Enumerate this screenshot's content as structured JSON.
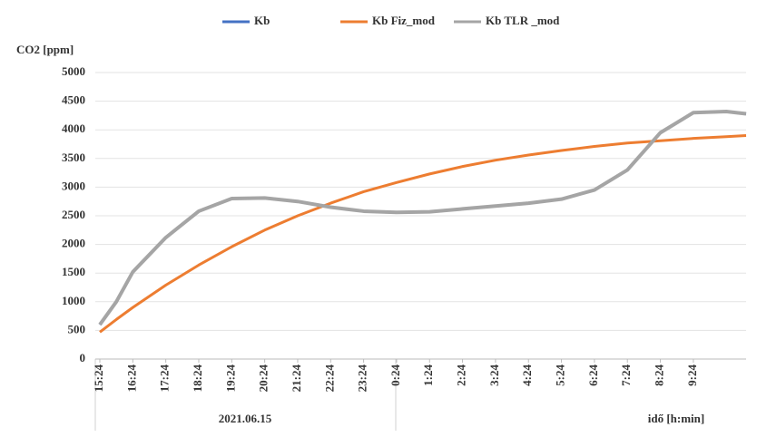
{
  "chart_data": {
    "type": "line",
    "ylabel": "CO2 [ppm]",
    "xlim": [
      0,
      19.6
    ],
    "xticks": [
      {
        "value": 0,
        "label": "15:24"
      },
      {
        "value": 1,
        "label": "16:24"
      },
      {
        "value": 2,
        "label": "17:24"
      },
      {
        "value": 3,
        "label": "18:24"
      },
      {
        "value": 4,
        "label": "19:24"
      },
      {
        "value": 5,
        "label": "20:24"
      },
      {
        "value": 6,
        "label": "21:24"
      },
      {
        "value": 7,
        "label": "22:24"
      },
      {
        "value": 8,
        "label": "23:24"
      },
      {
        "value": 9,
        "label": "0:24"
      },
      {
        "value": 10,
        "label": "1:24"
      },
      {
        "value": 11,
        "label": "2:24"
      },
      {
        "value": 12,
        "label": "3:24"
      },
      {
        "value": 13,
        "label": "4:24"
      },
      {
        "value": 14,
        "label": "5:24"
      },
      {
        "value": 15,
        "label": "6:24"
      },
      {
        "value": 16,
        "label": "7:24"
      },
      {
        "value": 17,
        "label": "8:24"
      },
      {
        "value": 18,
        "label": "9:24"
      }
    ],
    "group_labels": [
      "2021.06.15",
      "idő [h:min]"
    ],
    "ylim": [
      0,
      5000
    ],
    "yticks": [
      0,
      500,
      1000,
      1500,
      2000,
      2500,
      3000,
      3500,
      4000,
      4500,
      5000
    ],
    "grid": true,
    "legend": "top",
    "x": [
      0,
      0.5,
      1,
      2,
      3,
      4,
      5,
      6,
      7,
      8,
      9,
      10,
      11,
      12,
      13,
      14,
      15,
      16,
      17,
      18,
      19,
      19.6
    ],
    "series": [
      {
        "name": "Kb",
        "color": "#4472c4",
        "values": [
          600,
          1000,
          1520,
          2120,
          2580,
          2800,
          2810,
          2750,
          2650,
          2580,
          2560,
          2570,
          2620,
          2670,
          2720,
          2790,
          2950,
          3300,
          3950,
          4300,
          4320,
          4280
        ]
      },
      {
        "name": "Kb Fiz_mod",
        "color": "#ed7d31",
        "values": [
          470,
          690,
          900,
          1290,
          1640,
          1960,
          2250,
          2500,
          2720,
          2920,
          3080,
          3230,
          3360,
          3470,
          3560,
          3640,
          3710,
          3770,
          3810,
          3850,
          3880,
          3900
        ]
      },
      {
        "name": "Kb TLR _mod",
        "color": "#a5a5a5",
        "values": [
          600,
          1000,
          1520,
          2120,
          2580,
          2800,
          2810,
          2750,
          2650,
          2580,
          2560,
          2570,
          2620,
          2670,
          2720,
          2790,
          2950,
          3300,
          3950,
          4300,
          4320,
          4280
        ]
      }
    ]
  }
}
